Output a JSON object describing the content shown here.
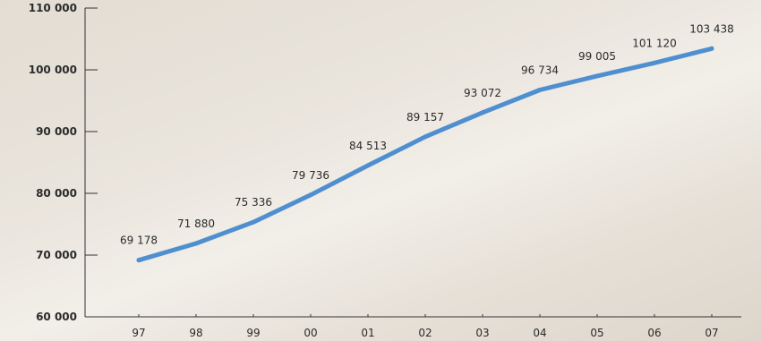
{
  "chart_data": {
    "type": "line",
    "title": "",
    "xlabel": "",
    "ylabel": "",
    "categories": [
      "97",
      "98",
      "99",
      "00",
      "01",
      "02",
      "03",
      "04",
      "05",
      "06",
      "07"
    ],
    "series": [
      {
        "values": [
          69178,
          71880,
          75336,
          79736,
          84513,
          89157,
          93072,
          96734,
          99005,
          101120,
          103438
        ],
        "labels": [
          "69 178",
          "71 880",
          "75 336",
          "79 736",
          "84 513",
          "89 157",
          "93 072",
          "96 734",
          "99 005",
          "101 120",
          "103 438"
        ]
      }
    ],
    "ylim": [
      60000,
      110000
    ],
    "yticks": [
      60000,
      70000,
      80000,
      90000,
      100000,
      110000
    ],
    "ytick_labels": [
      "60 000",
      "70 000",
      "80 000",
      "90 000",
      "100 000",
      "110 000"
    ],
    "grid": false,
    "line_color": "#4f8fd0"
  }
}
